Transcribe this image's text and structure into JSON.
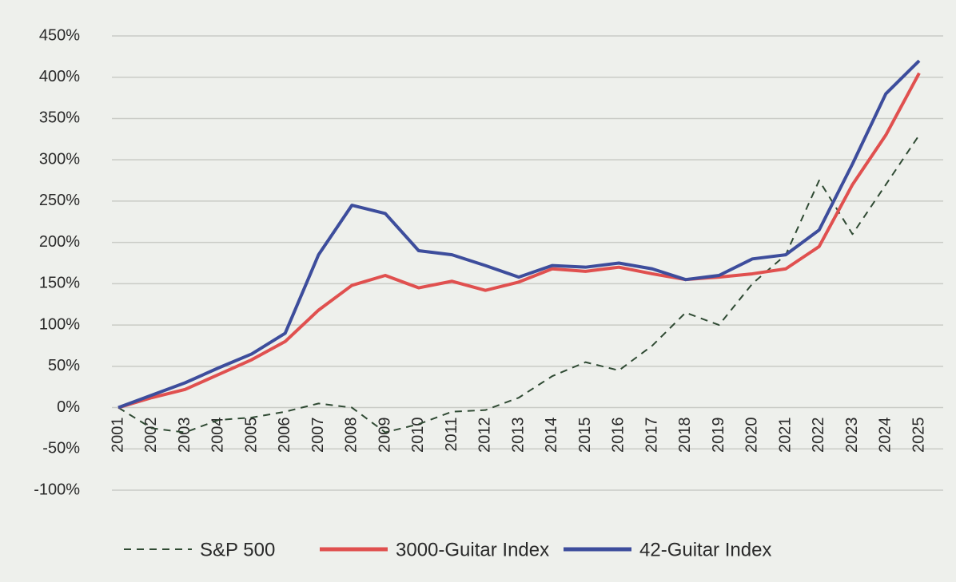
{
  "chart_data": {
    "type": "line",
    "categories": [
      "2001",
      "2002",
      "2003",
      "2004",
      "2005",
      "2006",
      "2007",
      "2008",
      "2009",
      "2010",
      "2011",
      "2012",
      "2013",
      "2014",
      "2015",
      "2016",
      "2017",
      "2018",
      "2019",
      "2020",
      "2021",
      "2022",
      "2023",
      "2024",
      "2025"
    ],
    "series": [
      {
        "name": "S&P 500",
        "color": "#2f4a33",
        "dashed": true,
        "values": [
          0,
          -25,
          -30,
          -15,
          -12,
          -5,
          5,
          0,
          -30,
          -20,
          -5,
          -3,
          12,
          38,
          55,
          45,
          75,
          115,
          100,
          150,
          185,
          275,
          210,
          270,
          330
        ]
      },
      {
        "name": "3000-Guitar Index",
        "color": "#e0504f",
        "dashed": false,
        "values": [
          0,
          12,
          22,
          40,
          58,
          80,
          118,
          148,
          160,
          145,
          153,
          142,
          152,
          168,
          165,
          170,
          162,
          155,
          158,
          162,
          168,
          195,
          270,
          330,
          405
        ]
      },
      {
        "name": "42-Guitar Index",
        "color": "#3d4d9c",
        "dashed": false,
        "values": [
          0,
          15,
          30,
          48,
          65,
          90,
          185,
          245,
          235,
          190,
          185,
          172,
          158,
          172,
          170,
          175,
          168,
          155,
          160,
          180,
          185,
          215,
          295,
          380,
          420
        ]
      }
    ],
    "ylim": [
      -100,
      450
    ],
    "yticks": [
      {
        "value": -100,
        "label": "-100%"
      },
      {
        "value": -50,
        "label": "-50%"
      },
      {
        "value": 0,
        "label": "0%"
      },
      {
        "value": 50,
        "label": "50%"
      },
      {
        "value": 100,
        "label": "100%"
      },
      {
        "value": 150,
        "label": "150%"
      },
      {
        "value": 200,
        "label": "200%"
      },
      {
        "value": 250,
        "label": "250%"
      },
      {
        "value": 300,
        "label": "300%"
      },
      {
        "value": 350,
        "label": "350%"
      },
      {
        "value": 400,
        "label": "400%"
      },
      {
        "value": 450,
        "label": "450%"
      }
    ],
    "grid": true
  }
}
